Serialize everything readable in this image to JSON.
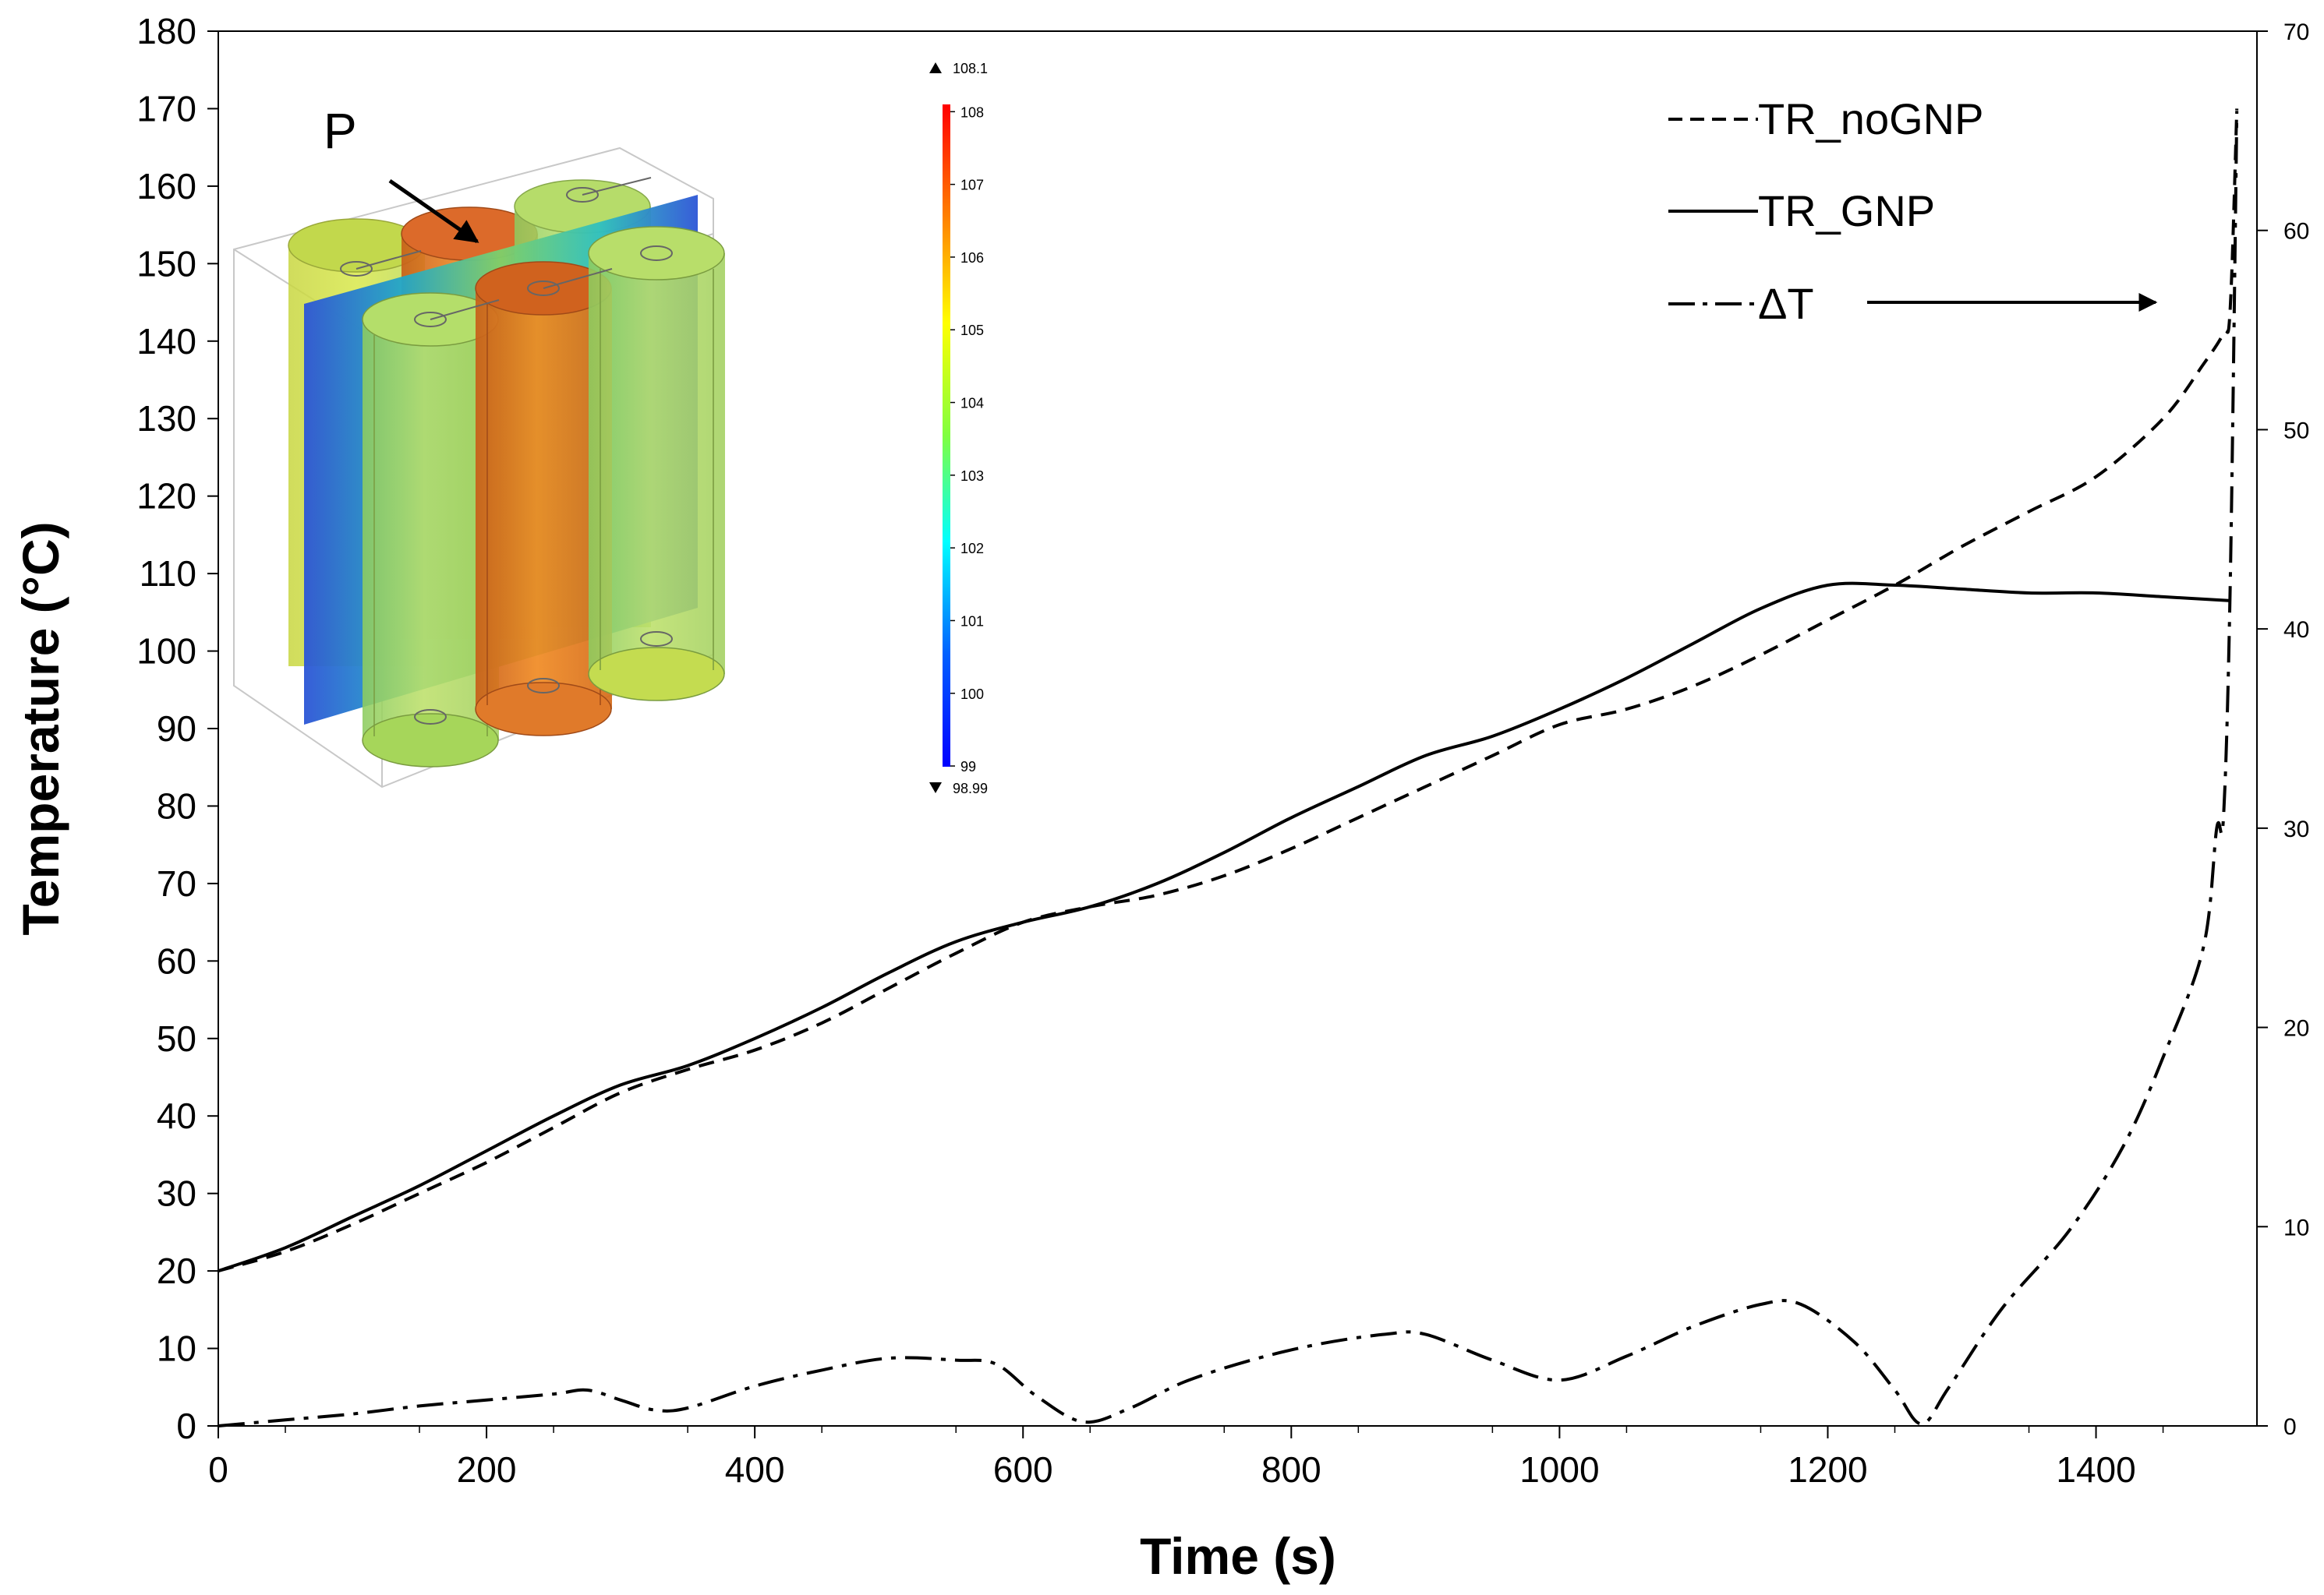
{
  "chart_data": {
    "type": "line",
    "xlabel": "Time (s)",
    "ylabel": "Temperature (°C)",
    "xlim": [
      0,
      1520
    ],
    "ylim": [
      0,
      180
    ],
    "y2lim": [
      0,
      70
    ],
    "grid": false,
    "legend_position": "top-right",
    "x_ticks": [
      "0",
      "200",
      "400",
      "600",
      "800",
      "1000",
      "1200",
      "1400"
    ],
    "y_ticks": [
      "0",
      "10",
      "20",
      "30",
      "40",
      "50",
      "60",
      "70",
      "80",
      "90",
      "100",
      "110",
      "120",
      "130",
      "140",
      "150",
      "160",
      "170",
      "180"
    ],
    "y2_ticks": [
      "0",
      "10",
      "20",
      "30",
      "40",
      "50",
      "60",
      "70"
    ],
    "series": [
      {
        "name": "TR_noGNP",
        "style": "dashed",
        "axis": "left",
        "x": [
          0,
          50,
          100,
          150,
          200,
          250,
          300,
          350,
          400,
          450,
          500,
          550,
          600,
          650,
          700,
          750,
          800,
          850,
          900,
          950,
          1000,
          1050,
          1100,
          1150,
          1200,
          1250,
          1300,
          1350,
          1400,
          1450,
          1480,
          1495,
          1500,
          1505
        ],
        "values": [
          20,
          22.5,
          26,
          30,
          34,
          38.5,
          43,
          46,
          48.5,
          52,
          56.5,
          61,
          65,
          67,
          68.5,
          71,
          74.5,
          78.5,
          82.5,
          86.5,
          90.5,
          92.5,
          95.5,
          99.5,
          104,
          108.5,
          113.5,
          118,
          122.5,
          130,
          137,
          141,
          144,
          170
        ]
      },
      {
        "name": "TR_GNP",
        "style": "solid",
        "axis": "left",
        "x": [
          0,
          50,
          100,
          150,
          200,
          250,
          300,
          350,
          400,
          450,
          500,
          550,
          600,
          650,
          700,
          750,
          800,
          850,
          900,
          950,
          1000,
          1050,
          1100,
          1150,
          1200,
          1250,
          1300,
          1350,
          1400,
          1450,
          1500
        ],
        "values": [
          20,
          23,
          27,
          31,
          35.5,
          40,
          44,
          46.5,
          50,
          54,
          58.5,
          62.5,
          65,
          67,
          70,
          74,
          78.5,
          82.5,
          86.5,
          89,
          92.5,
          96.5,
          101,
          105.5,
          108.5,
          108.5,
          108,
          107.5,
          107.5,
          107,
          106.5
        ]
      },
      {
        "name": "ΔT",
        "style": "dash-dot",
        "axis": "right",
        "x": [
          0,
          50,
          100,
          150,
          200,
          250,
          275,
          300,
          325,
          350,
          400,
          450,
          500,
          550,
          580,
          610,
          645,
          680,
          720,
          770,
          820,
          870,
          900,
          950,
          1000,
          1050,
          1100,
          1150,
          1180,
          1220,
          1250,
          1270,
          1290,
          1330,
          1380,
          1420,
          1450,
          1480,
          1490,
          1495,
          1500,
          1505
        ],
        "values": [
          0,
          0.3,
          0.6,
          1,
          1.3,
          1.6,
          1.8,
          1.3,
          0.8,
          0.9,
          2,
          2.8,
          3.4,
          3.3,
          3.1,
          1.5,
          0.2,
          0.9,
          2.2,
          3.3,
          4.1,
          4.6,
          4.6,
          3.3,
          2.3,
          3.5,
          5,
          6.1,
          6.1,
          4.2,
          1.8,
          0.1,
          1.9,
          5.9,
          9.8,
          14,
          18.5,
          24,
          30,
          30.5,
          42,
          66
        ]
      }
    ],
    "annotations": [
      {
        "text": "P"
      }
    ]
  },
  "colorbar": {
    "max_label": "108.1",
    "min_label": "98.99",
    "ticks": [
      "108",
      "107",
      "106",
      "105",
      "104",
      "103",
      "102",
      "101",
      "100",
      "99"
    ],
    "colors": [
      "#ff0000",
      "#ff8000",
      "#ffff00",
      "#80ff40",
      "#00ffff",
      "#0060ff",
      "#0000ff"
    ]
  },
  "colors": {
    "line": "#000000",
    "cell_orange": "#e0701a",
    "cell_green": "#a6d65a",
    "cell_yellowgreen": "#c8e040",
    "slice_blue": "#2c55d6"
  },
  "icons": [
    "arrow-right-icon",
    "triangle-up-icon",
    "triangle-down-icon"
  ]
}
